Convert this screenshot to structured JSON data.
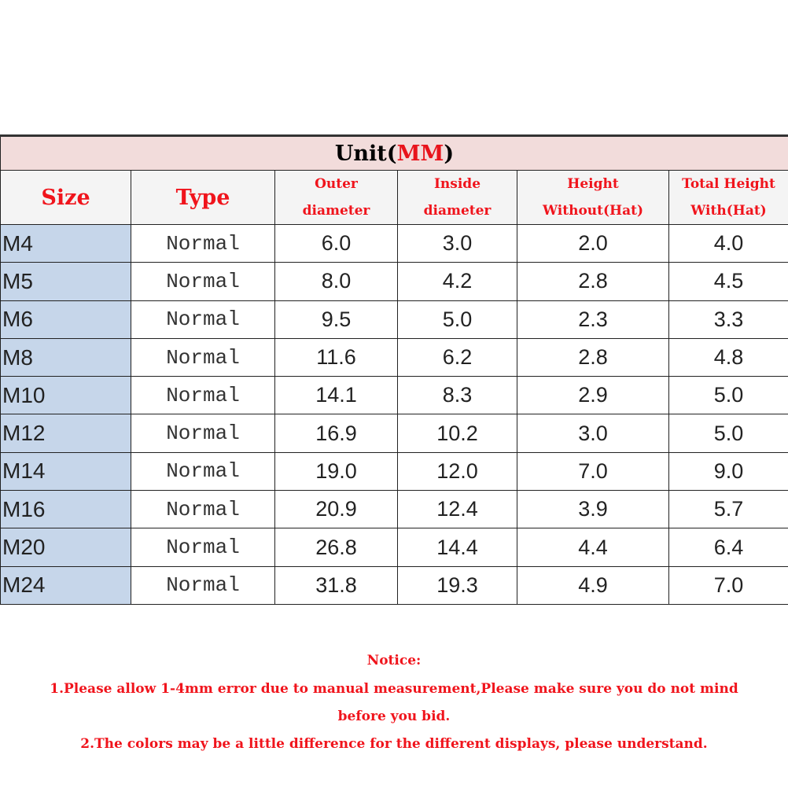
{
  "table": {
    "title_prefix": "Unit(",
    "title_unit": "MM",
    "title_suffix": ")",
    "headers": [
      {
        "line1": "Size",
        "line2": ""
      },
      {
        "line1": "Type",
        "line2": ""
      },
      {
        "line1": "Outer",
        "line2": "diameter"
      },
      {
        "line1": "Inside",
        "line2": "diameter"
      },
      {
        "line1": "Height",
        "line2": "Without(Hat)"
      },
      {
        "line1": "Total Height",
        "line2": "With(Hat)"
      }
    ],
    "rows": [
      [
        "M4",
        "Normal",
        "6.0",
        "3.0",
        "2.0",
        "4.0"
      ],
      [
        "M5",
        "Normal",
        "8.0",
        "4.2",
        "2.8",
        "4.5"
      ],
      [
        "M6",
        "Normal",
        "9.5",
        "5.0",
        "2.3",
        "3.3"
      ],
      [
        "M8",
        "Normal",
        "11.6",
        "6.2",
        "2.8",
        "4.8"
      ],
      [
        "M10",
        "Normal",
        "14.1",
        "8.3",
        "2.9",
        "5.0"
      ],
      [
        "M12",
        "Normal",
        "16.9",
        "10.2",
        "3.0",
        "5.0"
      ],
      [
        "M14",
        "Normal",
        "19.0",
        "12.0",
        "7.0",
        "9.0"
      ],
      [
        "M16",
        "Normal",
        "20.9",
        "12.4",
        "3.9",
        "5.7"
      ],
      [
        "M20",
        "Normal",
        "26.8",
        "14.4",
        "4.4",
        "6.4"
      ],
      [
        "M24",
        "Normal",
        "31.8",
        "19.3",
        "4.9",
        "7.0"
      ]
    ]
  },
  "notice": {
    "heading": "Notice:",
    "line1": "1.Please allow 1-4mm error due to manual measurement,Please make sure you do not mind",
    "line1b": "before you bid.",
    "line2": "2.The colors may be a little difference for the different displays, please understand."
  },
  "colors": {
    "accent_red": "#f0141c",
    "title_bg": "#f2dcdb",
    "size_col_bg": "#c6d6ea"
  }
}
